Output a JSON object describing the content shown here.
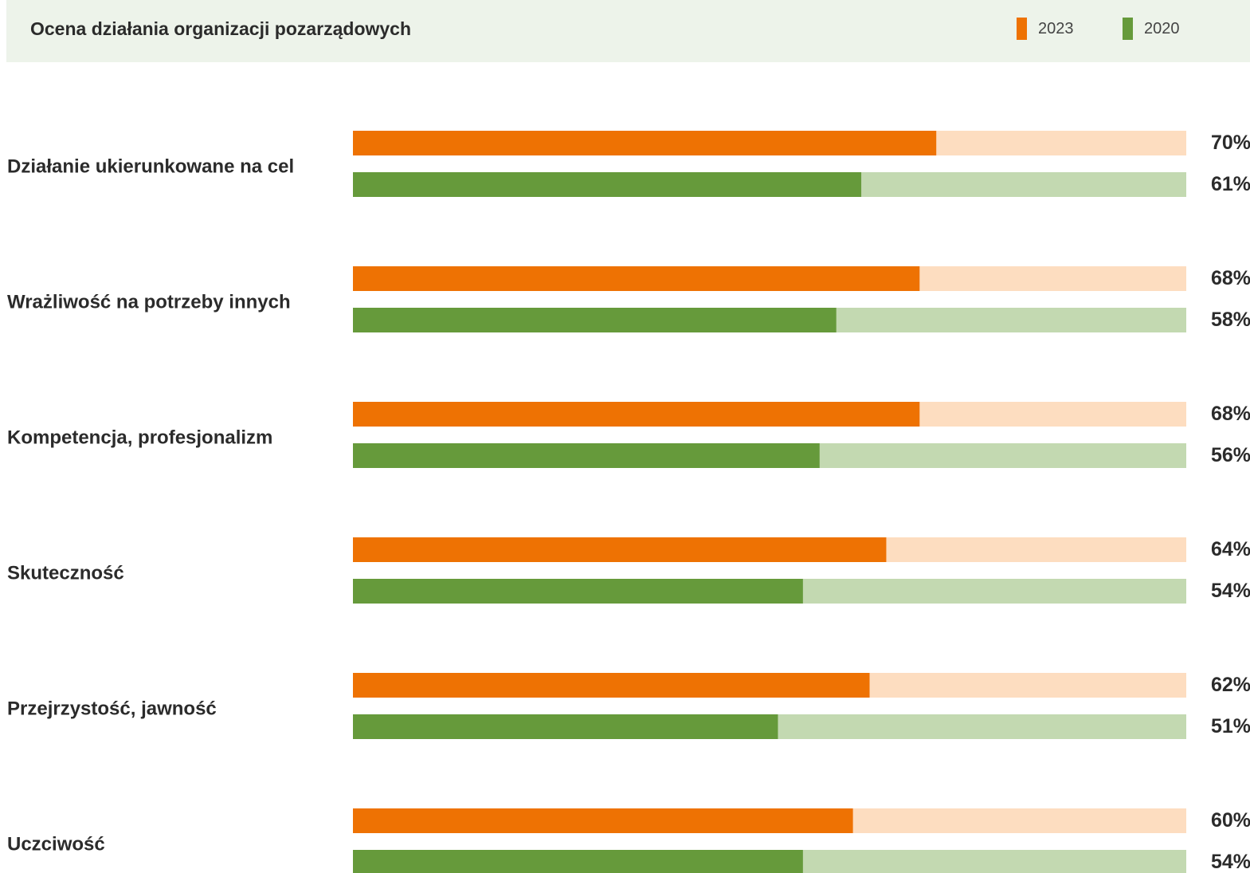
{
  "title": "Ocena działania organizacji pozarządowych",
  "colors": {
    "header_bg": "#edf3ea",
    "orange": "#ee7203",
    "orange_track": "#fdddc0",
    "green": "#669a3b",
    "green_track": "#c3d9b1"
  },
  "legend": [
    {
      "label": "2023",
      "color": "#ee7203"
    },
    {
      "label": "2020",
      "color": "#669a3b"
    }
  ],
  "chart_data": {
    "type": "bar",
    "orientation": "horizontal",
    "title": "Ocena działania organizacji pozarządowych",
    "categories": [
      "Działanie ukierunkowane na cel",
      "Wrażliwość na potrzeby innych",
      "Kompetencja, profesjonalizm",
      "Skuteczność",
      "Przejrzystość, jawność",
      "Uczciwość"
    ],
    "series": [
      {
        "name": "2023",
        "values": [
          70,
          68,
          68,
          64,
          62,
          60
        ],
        "labels": [
          "70%",
          "68%",
          "68%",
          "64%",
          "62%",
          "60%"
        ]
      },
      {
        "name": "2020",
        "values": [
          61,
          58,
          56,
          54,
          51,
          54
        ],
        "labels": [
          "61%",
          "58%",
          "56%",
          "54%",
          "51%",
          "54%"
        ]
      }
    ],
    "xlim": [
      0,
      100
    ],
    "legend_position": "top-right",
    "grid": false
  }
}
